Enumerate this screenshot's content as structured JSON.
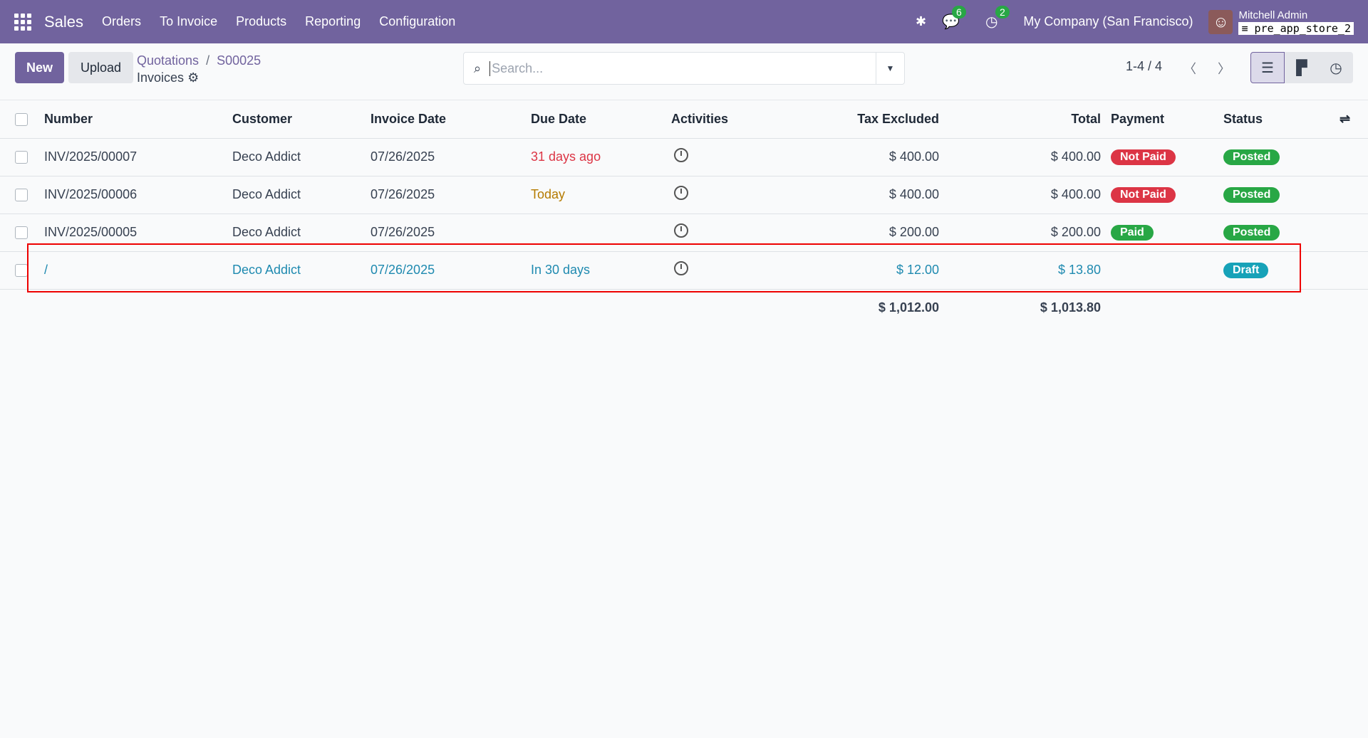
{
  "nav": {
    "brand": "Sales",
    "menu": [
      "Orders",
      "To Invoice",
      "Products",
      "Reporting",
      "Configuration"
    ],
    "messages_count": "6",
    "activities_count": "2",
    "company": "My Company (San Francisco)",
    "user": "Mitchell Admin",
    "database": "pre_app_store_2"
  },
  "control": {
    "new_label": "New",
    "upload_label": "Upload",
    "breadcrumb": [
      "Quotations",
      "S00025"
    ],
    "title": "Invoices",
    "search_placeholder": "Search...",
    "pager": "1-4 / 4"
  },
  "table": {
    "headers": [
      "Number",
      "Customer",
      "Invoice Date",
      "Due Date",
      "Activities",
      "Tax Excluded",
      "Total",
      "Payment",
      "Status"
    ],
    "rows": [
      {
        "number": "INV/2025/00007",
        "customer": "Deco Addict",
        "invoice_date": "07/26/2025",
        "due_date": "31 days ago",
        "due_color": "#dc3545",
        "tax_excluded": "$ 400.00",
        "total": "$ 400.00",
        "payment": "Not Paid",
        "payment_color": "#dc3545",
        "status": "Posted",
        "status_color": "#28a745"
      },
      {
        "number": "INV/2025/00006",
        "customer": "Deco Addict",
        "invoice_date": "07/26/2025",
        "due_date": "Today",
        "due_color": "#b57b00",
        "tax_excluded": "$ 400.00",
        "total": "$ 400.00",
        "payment": "Not Paid",
        "payment_color": "#dc3545",
        "status": "Posted",
        "status_color": "#28a745"
      },
      {
        "number": "INV/2025/00005",
        "customer": "Deco Addict",
        "invoice_date": "07/26/2025",
        "due_date": "",
        "due_color": "#374151",
        "tax_excluded": "$ 200.00",
        "total": "$ 200.00",
        "payment": "Paid",
        "payment_color": "#28a745",
        "status": "Posted",
        "status_color": "#28a745"
      },
      {
        "number": "/",
        "customer": "Deco Addict",
        "invoice_date": "07/26/2025",
        "due_date": "In 30 days",
        "due_color": "#1f8ab0",
        "tax_excluded": "$ 12.00",
        "total": "$ 13.80",
        "payment": "",
        "payment_color": "",
        "status": "Draft",
        "status_color": "#17a2b8"
      }
    ],
    "totals": {
      "tax_excluded": "$ 1,012.00",
      "total": "$ 1,013.80"
    }
  }
}
